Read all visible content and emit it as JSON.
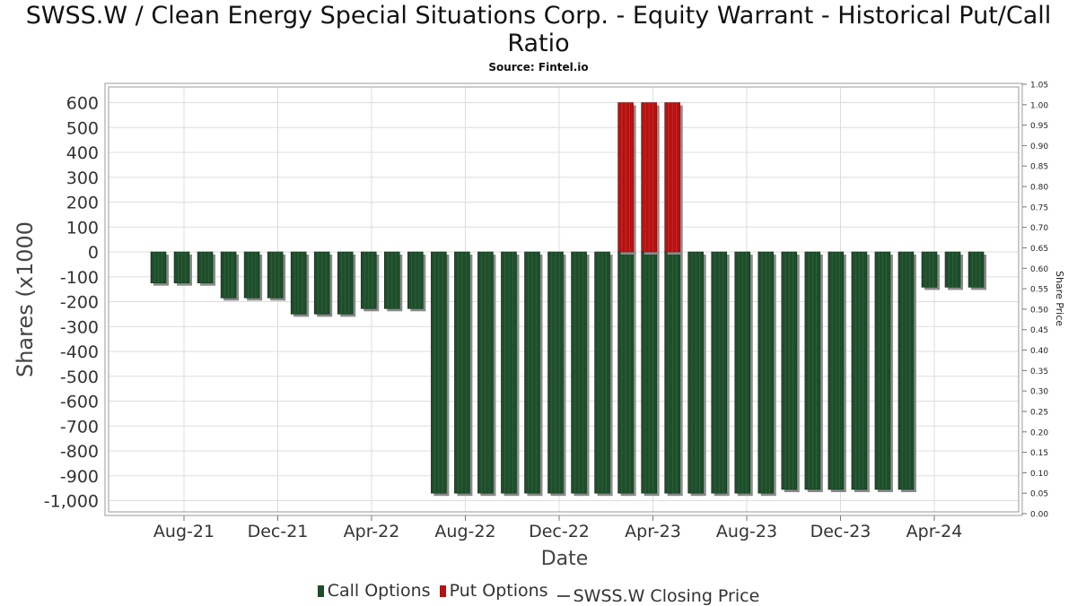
{
  "title": "SWSS.W / Clean Energy Special Situations Corp. - Equity Warrant - Historical Put/Call Ratio",
  "subtitle": "Source: Fintel.io",
  "colors": {
    "call": "#1f4d2b",
    "put": "#b51212",
    "shadow": "#8a8a8a",
    "grid": "#dddddd"
  },
  "chart_data": {
    "type": "bar",
    "xlabel": "Date",
    "ylabel": "Shares (x1000",
    "y2label": "Share Price",
    "ylim": [
      -1030,
      670
    ],
    "y2lim": [
      0,
      1.05
    ],
    "yticks": [
      600,
      500,
      400,
      300,
      200,
      100,
      0,
      -100,
      -200,
      -300,
      -400,
      -500,
      -600,
      -700,
      -800,
      -900,
      -1000
    ],
    "ytick_labels": [
      "600",
      "500",
      "400",
      "300",
      "200",
      "100",
      "0",
      "-100",
      "-200",
      "-300",
      "-400",
      "-500",
      "-600",
      "-700",
      "-800",
      "-900",
      "-1,000"
    ],
    "y2ticks": [
      "1.05",
      "1.00",
      "0.95",
      "0.90",
      "0.85",
      "0.80",
      "0.75",
      "0.70",
      "0.65",
      "0.60",
      "0.55",
      "0.50",
      "0.45",
      "0.40",
      "0.35",
      "0.30",
      "0.25",
      "0.20",
      "0.15",
      "0.10",
      "0.05",
      "0.00"
    ],
    "xticks": [
      "Aug-21",
      "Dec-21",
      "Apr-22",
      "Aug-22",
      "Dec-22",
      "Apr-23",
      "Aug-23",
      "Dec-23",
      "Apr-24"
    ],
    "grid": true,
    "legend_position": "bottom",
    "series": [
      {
        "name": "Call Options",
        "values": [
          -125,
          -125,
          -125,
          -185,
          -185,
          -185,
          -250,
          -250,
          -250,
          -228,
          -228,
          -228,
          -970,
          -970,
          -970,
          -970,
          -970,
          -970,
          -970,
          -970,
          -970,
          -970,
          -970,
          -970,
          -970,
          -970,
          -970,
          -955,
          -955,
          -955,
          -955,
          -955,
          -955,
          -142,
          -142,
          -142
        ]
      },
      {
        "name": "Put Options",
        "values": [
          0,
          0,
          0,
          0,
          0,
          0,
          0,
          0,
          0,
          0,
          0,
          0,
          0,
          0,
          0,
          0,
          0,
          0,
          0,
          0,
          600,
          600,
          600,
          0,
          0,
          0,
          0,
          0,
          0,
          0,
          0,
          0,
          0,
          0,
          0,
          0
        ]
      },
      {
        "name": "SWSS.W Closing Price",
        "values": []
      }
    ]
  },
  "legend": {
    "call": "Call Options",
    "put": "Put Options",
    "price": "SWSS.W Closing Price"
  }
}
